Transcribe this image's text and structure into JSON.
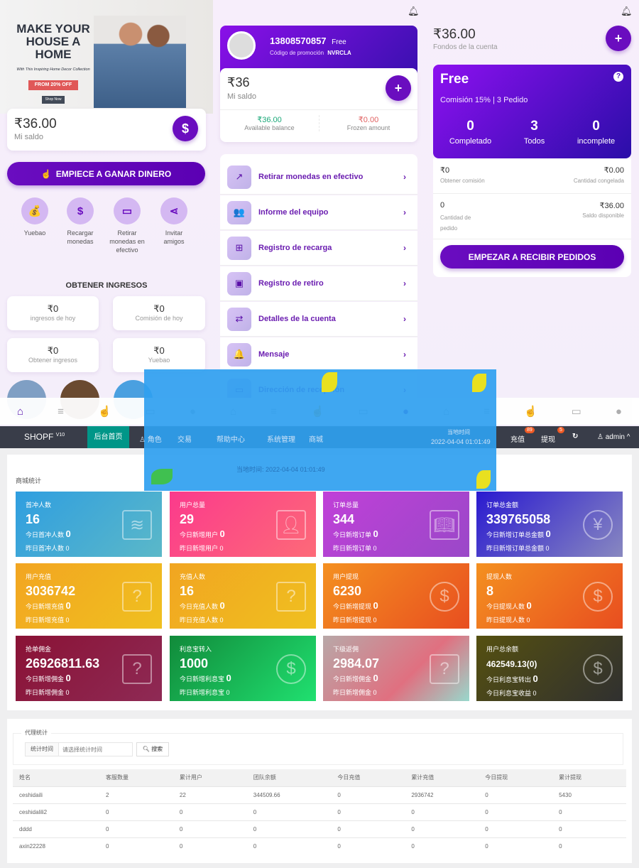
{
  "app1": {
    "banner": {
      "line1": "MAKE YOUR",
      "line2": "HOUSE A HOME",
      "sub": "With This Inspiring Home Decor Collection",
      "promo": "FROM 20% OFF",
      "shop": "Shop Now"
    },
    "balance": "₹36.00",
    "balance_label": "Mi saldo",
    "balance_icon": "$",
    "earn_button": "EMPIECE A GANAR DINERO",
    "actions": [
      {
        "label": "Yuebao",
        "icon": "hand-coins-icon"
      },
      {
        "label": "Recargar monedas",
        "icon": "dollar-icon"
      },
      {
        "label": "Retirar monedas en efectivo",
        "icon": "card-icon"
      },
      {
        "label": "Invitar amigos",
        "icon": "share-icon"
      }
    ],
    "income_title": "OBTENER INGRESOS",
    "income": [
      {
        "value": "₹0",
        "label": "ingresos de hoy"
      },
      {
        "value": "₹0",
        "label": "Comisión de hoy"
      },
      {
        "value": "₹0",
        "label": "Obtener ingresos"
      },
      {
        "value": "₹0",
        "label": "Yuebao"
      }
    ]
  },
  "app2": {
    "phone": "13808570857",
    "level": "Free",
    "promo_label": "Código de promoción",
    "promo_code": "NVRCLA",
    "balance": "₹36",
    "balance_label": "Mi saldo",
    "available": "₹36.00",
    "available_label": "Available balance",
    "frozen": "₹0.00",
    "frozen_label": "Frozen amount",
    "menu": [
      {
        "label": "Retirar monedas en efectivo",
        "icon": "↗"
      },
      {
        "label": "Informe del equipo",
        "icon": "👥"
      },
      {
        "label": "Registro de recarga",
        "icon": "⊞"
      },
      {
        "label": "Registro de retiro",
        "icon": "▣"
      },
      {
        "label": "Detalles de la cuenta",
        "icon": "⇄"
      },
      {
        "label": "Mensaje",
        "icon": "🔔"
      },
      {
        "label": "Dirección de recepción",
        "icon": "▭"
      }
    ]
  },
  "app3": {
    "funds": "₹36.00",
    "funds_label": "Fondos de la cuenta",
    "level": "Free",
    "commission": "Comisión 15% | 3 Pedido",
    "counts": [
      {
        "value": "0",
        "label": "Completado"
      },
      {
        "value": "3",
        "label": "Todos"
      },
      {
        "value": "0",
        "label": "incomplete"
      }
    ],
    "rows": [
      {
        "lv": "₹0",
        "ll": "Obtener comisión",
        "rv": "₹0.00",
        "rl": "Cantidad congelada"
      },
      {
        "lv": "0",
        "ll": "Cantidad de pedido",
        "rv": "₹36.00",
        "rl": "Saldo disponible"
      }
    ],
    "button": "EMPEZAR A RECIBIR PEDIDOS"
  },
  "overlay": {
    "time_label": "当地时间:",
    "time": "2022-04-04 01:01:49"
  },
  "admin": {
    "logo": "SHOPF",
    "version": "V10",
    "nav": [
      "后台首页",
      "角色",
      "交易",
      "帮助中心",
      "系统管理",
      "商城"
    ],
    "time_label": "当地时间",
    "time": "2022-04-04 01:01:49",
    "recharge": "充值",
    "recharge_badge": "89",
    "withdraw": "提现",
    "withdraw_badge": "5",
    "user": "admin",
    "section": "商城统计",
    "cards": [
      {
        "title": "首冲人数",
        "value": "16",
        "l1": "今日首冲人数",
        "v1": "0",
        "l2": "昨日首冲人数",
        "v2": "0",
        "icon": "layers-icon",
        "bg": "linear-gradient(135deg,#2f9ee0,#5bb8c8)"
      },
      {
        "title": "用户总量",
        "value": "29",
        "l1": "今日新增用户",
        "v1": "0",
        "l2": "昨日新增用户",
        "v2": "0",
        "icon": "users-icon",
        "bg": "linear-gradient(135deg,#fb3a8c,#fd6a78)"
      },
      {
        "title": "订单总量",
        "value": "344",
        "l1": "今日新增订单",
        "v1": "0",
        "l2": "昨日新增订单",
        "v2": "0",
        "icon": "book-icon",
        "bg": "linear-gradient(135deg,#c040d8,#9a48c8)"
      },
      {
        "title": "订单总金额",
        "value": "339765058",
        "l1": "今日新增订单总金额",
        "v1": "0",
        "l2": "昨日新增订单总金额",
        "v2": "0",
        "icon": "yen-icon",
        "bg": "linear-gradient(135deg,#2a1ad0,#8888c0)"
      },
      {
        "title": "用户充值",
        "value": "3036742",
        "l1": "今日新增充值",
        "v1": "0",
        "l2": "昨日新增充值",
        "v2": "0",
        "icon": "question-edit-icon",
        "bg": "linear-gradient(135deg,#f2a521,#f0c020)"
      },
      {
        "title": "充值人数",
        "value": "16",
        "l1": "今日充值人数",
        "v1": "0",
        "l2": "昨日充值人数",
        "v2": "0",
        "icon": "question-edit-icon",
        "bg": "linear-gradient(135deg,#f1a521,#f0c020)"
      },
      {
        "title": "用户提现",
        "value": "6230",
        "l1": "今日新增提现",
        "v1": "0",
        "l2": "昨日新增提现",
        "v2": "0",
        "icon": "dollar-circle-icon",
        "bg": "linear-gradient(135deg,#f49020,#e84e20)"
      },
      {
        "title": "提现人数",
        "value": "8",
        "l1": "今日提现人数",
        "v1": "0",
        "l2": "昨日提现人数",
        "v2": "0",
        "icon": "dollar-circle-icon",
        "bg": "linear-gradient(135deg,#f49020,#e84e20)"
      },
      {
        "title": "抢单佣金",
        "value": "26926811.63",
        "l1": "今日新增佣金",
        "v1": "0",
        "l2": "昨日新增佣金",
        "v2": "0",
        "icon": "question-edit-icon",
        "bg": "linear-gradient(135deg,#8a1235,#8e2a55)"
      },
      {
        "title": "利息宝转入",
        "value": "1000",
        "l1": "今日新增利息宝",
        "v1": "0",
        "l2": "昨日新增利息宝",
        "v2": "0",
        "icon": "dollar-circle-icon",
        "bg": "linear-gradient(135deg,#118a3a,#20e070)"
      },
      {
        "title": "下级返佣",
        "value": "2984.07",
        "l1": "今日新增佣金",
        "v1": "0",
        "l2": "昨日新增佣金",
        "v2": "0",
        "icon": "question-edit-icon",
        "bg": "linear-gradient(135deg,#b8a8a8,#e07080 60%,#98d8cc)"
      },
      {
        "title": "用户总余额",
        "value": "462549.13(0)",
        "l1": "今日利息宝转出",
        "v1": "0",
        "l2": "今日利息宝收益",
        "v2": "0",
        "icon": "dollar-circle-icon",
        "bg": "linear-gradient(135deg,#555010,#303030)"
      }
    ],
    "agent": {
      "legend": "代理统计",
      "field_label": "统计时间",
      "placeholder": "请选择统计时间",
      "search": "搜索",
      "columns": [
        "姓名",
        "客服数量",
        "累计用户",
        "团队余额",
        "今日充值",
        "累计充值",
        "今日提现",
        "累计提现"
      ],
      "rows": [
        [
          "ceshidaili",
          "2",
          "22",
          "344509.66",
          "0",
          "2936742",
          "0",
          "5430"
        ],
        [
          "ceshidalili2",
          "0",
          "0",
          "0",
          "0",
          "0",
          "0",
          "0"
        ],
        [
          "dddd",
          "0",
          "0",
          "0",
          "0",
          "0",
          "0",
          "0"
        ],
        [
          "axin22228",
          "0",
          "0",
          "0",
          "0",
          "0",
          "0",
          "0"
        ]
      ]
    }
  },
  "colors": {
    "purple": "#6a0dbf",
    "teal": "#009688",
    "navbar": "#393d49",
    "overlay": "#2f9ff0"
  }
}
